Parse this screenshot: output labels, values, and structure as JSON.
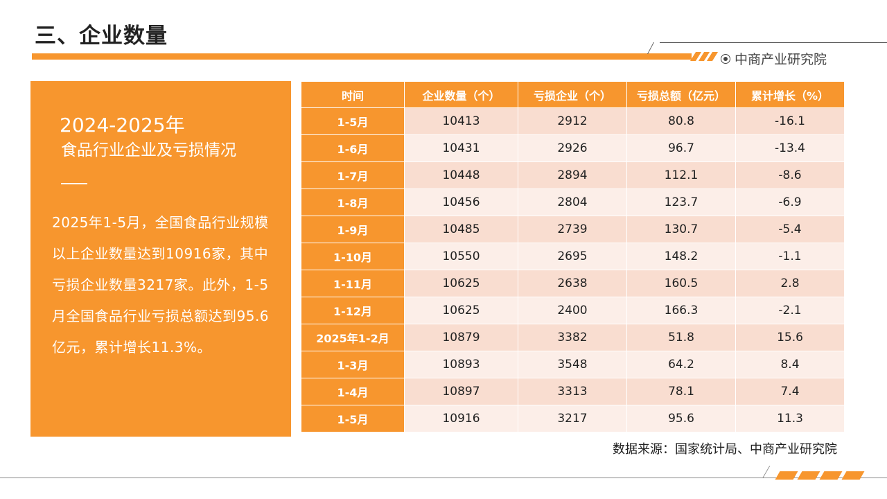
{
  "header": {
    "title": "三、企业数量",
    "brand": "中商产业研究院"
  },
  "panel": {
    "heading_line1": "2024-2025年",
    "heading_line2": "食品行业企业及亏损情况",
    "body": "2025年1-5月，全国食品行业规模以上企业数量达到10916家，其中亏损企业数量3217家。此外，1-5月全国食品行业亏损总额达到95.6亿元，累计增长11.3%。"
  },
  "table": {
    "headers": [
      "时间",
      "企业数量（个）",
      "亏损企业（个）",
      "亏损总额（亿元）",
      "累计增长（%）"
    ],
    "rows": [
      [
        "1-5月",
        "10413",
        "2912",
        "80.8",
        "-16.1"
      ],
      [
        "1-6月",
        "10431",
        "2926",
        "96.7",
        "-13.4"
      ],
      [
        "1-7月",
        "10448",
        "2894",
        "112.1",
        "-8.6"
      ],
      [
        "1-8月",
        "10456",
        "2804",
        "123.7",
        "-6.9"
      ],
      [
        "1-9月",
        "10485",
        "2739",
        "130.7",
        "-5.4"
      ],
      [
        "1-10月",
        "10550",
        "2695",
        "148.2",
        "-1.1"
      ],
      [
        "1-11月",
        "10625",
        "2638",
        "160.5",
        "2.8"
      ],
      [
        "1-12月",
        "10625",
        "2400",
        "166.3",
        "-2.1"
      ],
      [
        "2025年1-2月",
        "10879",
        "3382",
        "51.8",
        "15.6"
      ],
      [
        "1-3月",
        "10893",
        "3548",
        "64.2",
        "8.4"
      ],
      [
        "1-4月",
        "10897",
        "3313",
        "78.1",
        "7.4"
      ],
      [
        "1-5月",
        "10916",
        "3217",
        "95.6",
        "11.3"
      ]
    ]
  },
  "source": "数据来源：国家统计局、中商产业研究院",
  "colors": {
    "accent": "#f7962e",
    "row_odd": "#f9ddd0",
    "row_even": "#fceee8"
  }
}
